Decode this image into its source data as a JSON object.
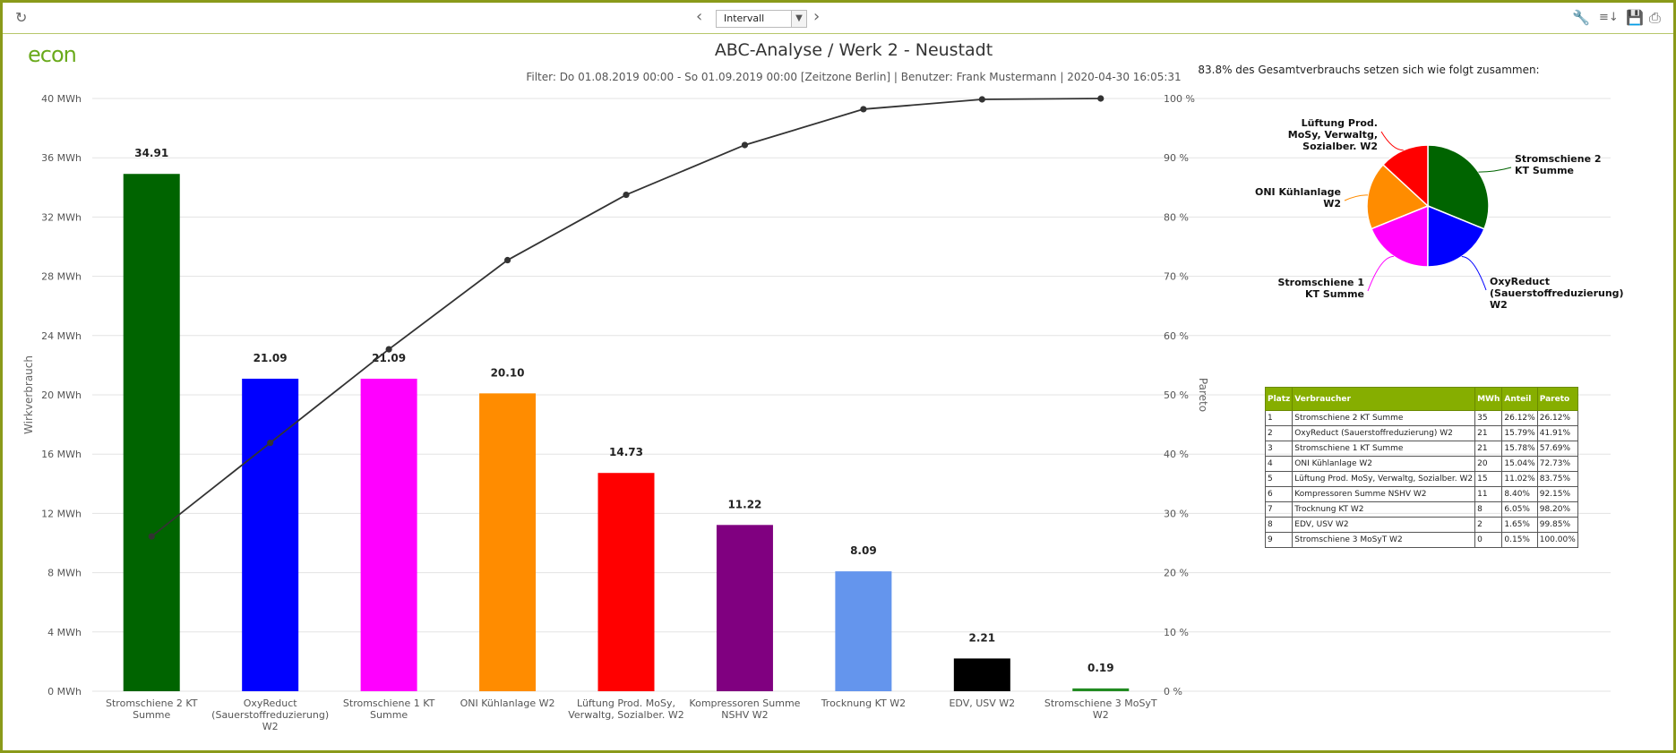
{
  "toolbar": {
    "refresh_icon": "refresh-icon",
    "interval_label": "Intervall",
    "prev_icon": "chevron-left-icon",
    "next_icon": "chevron-right-icon",
    "tools": [
      "wrench-icon",
      "sort-icon",
      "save-icon",
      "print-icon"
    ]
  },
  "brand": {
    "logo_text": "econ",
    "color": "#6aaa1c"
  },
  "header": {
    "title": "ABC-Analyse / Werk 2 - Neustadt",
    "filter": "Filter: Do 01.08.2019 00:00 - So 01.09.2019 00:00 [Zeitzone Berlin] | Benutzer: Frank Mustermann | 2020-04-30 16:05:31"
  },
  "chart_data": [
    {
      "type": "bar",
      "title": "ABC-Analyse / Werk 2 - Neustadt",
      "ylabel": "Wirkverbrauch",
      "y2label": "Pareto",
      "ylim": [
        0,
        40
      ],
      "y2lim": [
        0,
        100
      ],
      "yticks": [
        "0 MWh",
        "4 MWh",
        "8 MWh",
        "12 MWh",
        "16 MWh",
        "20 MWh",
        "24 MWh",
        "28 MWh",
        "32 MWh",
        "36 MWh",
        "40 MWh"
      ],
      "y2ticks": [
        "0 %",
        "10 %",
        "20 %",
        "30 %",
        "40 %",
        "50 %",
        "60 %",
        "70 %",
        "80 %",
        "90 %",
        "100 %"
      ],
      "categories": [
        [
          "Stromschiene 2 KT",
          "Summe"
        ],
        [
          "OxyReduct",
          "(Sauerstoffreduzierung)",
          "W2"
        ],
        [
          "Stromschiene 1 KT",
          "Summe"
        ],
        [
          "ONI Kühlanlage W2"
        ],
        [
          "Lüftung Prod. MoSy,",
          "Verwaltg, Sozialber. W2"
        ],
        [
          "Kompressoren Summe",
          "NSHV W2"
        ],
        [
          "Trocknung KT W2"
        ],
        [
          "EDV, USV W2"
        ],
        [
          "Stromschiene 3 MoSyT",
          "W2"
        ]
      ],
      "values": [
        34.91,
        21.09,
        21.09,
        20.1,
        14.73,
        11.22,
        8.09,
        2.21,
        0.19
      ],
      "value_labels": [
        "34.91",
        "21.09",
        "21.09",
        "20.10",
        "14.73",
        "11.22",
        "8.09",
        "2.21",
        "0.19"
      ],
      "colors": [
        "#006400",
        "#0000ff",
        "#ff00ff",
        "#ff8c00",
        "#ff0000",
        "#800080",
        "#6495ed",
        "#000000",
        "#228b22"
      ],
      "pareto": [
        26.12,
        41.91,
        57.69,
        72.73,
        83.75,
        92.15,
        98.2,
        99.85,
        100.0
      ]
    },
    {
      "type": "pie",
      "title": "83.8% des Gesamtverbrauchs setzen sich wie folgt zusammen:",
      "slices": [
        {
          "label": [
            "Stromschiene 2",
            "KT Summe"
          ],
          "value": 34.91,
          "color": "#006400"
        },
        {
          "label": [
            "OxyReduct",
            "(Sauerstoffreduzierung)",
            "W2"
          ],
          "value": 21.09,
          "color": "#0000ff"
        },
        {
          "label": [
            "Stromschiene 1",
            "KT Summe"
          ],
          "value": 21.09,
          "color": "#ff00ff"
        },
        {
          "label": [
            "ONI Kühlanlage",
            "W2"
          ],
          "value": 20.1,
          "color": "#ff8c00"
        },
        {
          "label": [
            "Lüftung Prod.",
            "MoSy, Verwaltg,",
            "Sozialber. W2"
          ],
          "value": 14.73,
          "color": "#ff0000"
        }
      ]
    }
  ],
  "table": {
    "headers": [
      "Platz",
      "Verbraucher",
      "MWh",
      "Anteil",
      "Pareto"
    ],
    "rows": [
      [
        "1",
        "Stromschiene 2 KT Summe",
        "35",
        "26.12%",
        "26.12%"
      ],
      [
        "2",
        "OxyReduct (Sauerstoffreduzierung) W2",
        "21",
        "15.79%",
        "41.91%"
      ],
      [
        "3",
        "Stromschiene 1 KT Summe",
        "21",
        "15.78%",
        "57.69%"
      ],
      [
        "4",
        "ONI Kühlanlage W2",
        "20",
        "15.04%",
        "72.73%"
      ],
      [
        "5",
        "Lüftung Prod. MoSy, Verwaltg, Sozialber. W2",
        "15",
        "11.02%",
        "83.75%"
      ],
      [
        "6",
        "Kompressoren Summe NSHV W2",
        "11",
        "8.40%",
        "92.15%"
      ],
      [
        "7",
        "Trocknung KT W2",
        "8",
        "6.05%",
        "98.20%"
      ],
      [
        "8",
        "EDV, USV W2",
        "2",
        "1.65%",
        "99.85%"
      ],
      [
        "9",
        "Stromschiene 3 MoSyT W2",
        "0",
        "0.15%",
        "100.00%"
      ]
    ]
  }
}
